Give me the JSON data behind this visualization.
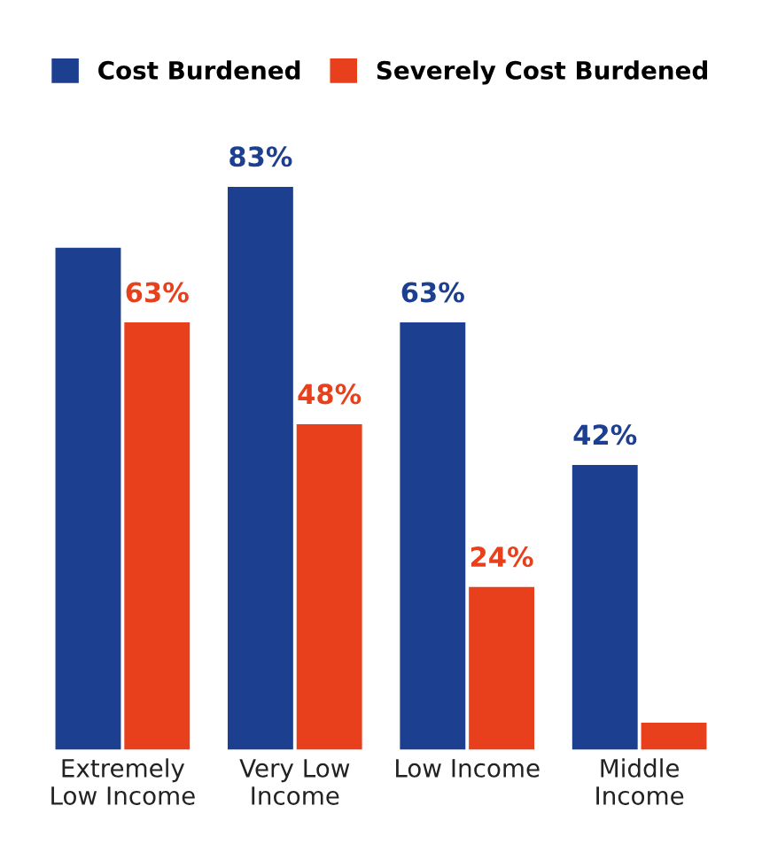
{
  "chart_data": {
    "type": "bar",
    "categories": [
      "Extremely\nLow Income",
      "Very Low\nIncome",
      "Low Income",
      "Middle\nIncome"
    ],
    "series": [
      {
        "name": "Cost Burdened",
        "color": "#1d3f8f",
        "values": [
          74,
          83,
          63,
          42
        ],
        "value_labels": [
          null,
          "83%",
          "63%",
          "42%"
        ]
      },
      {
        "name": "Severely Cost Burdened",
        "color": "#e8401c",
        "values": [
          63,
          48,
          24,
          4
        ],
        "value_labels": [
          "63%",
          "48%",
          "24%",
          null
        ]
      }
    ],
    "legend": "top",
    "grid": false,
    "tick_labels": "x"
  }
}
